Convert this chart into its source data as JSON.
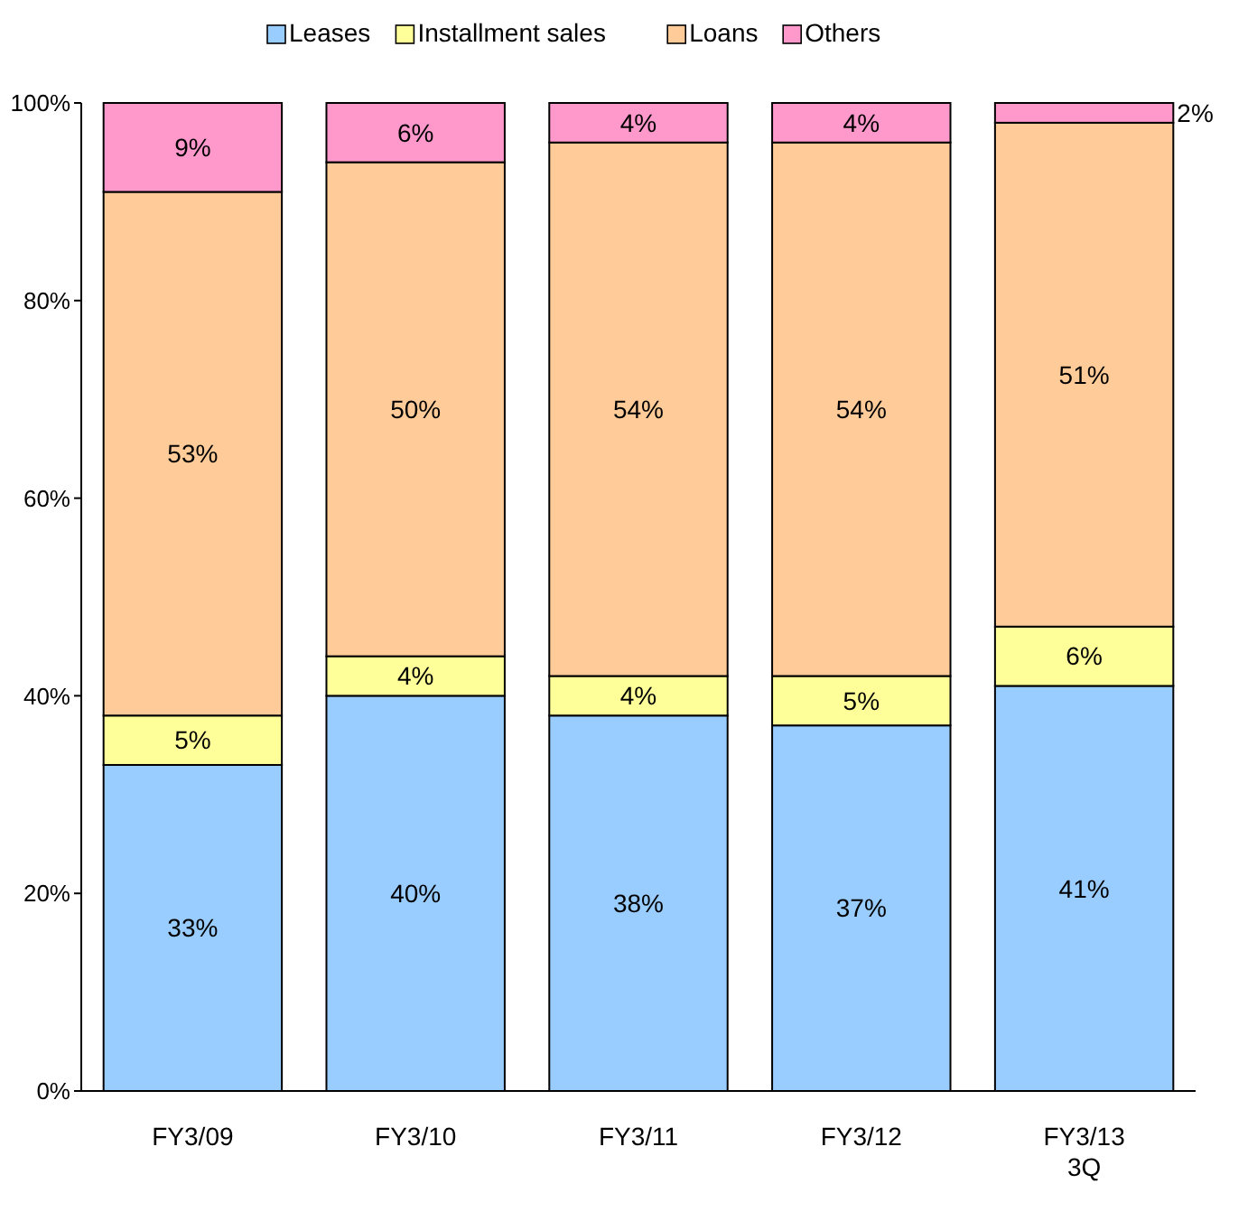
{
  "chart_data": {
    "type": "bar",
    "stacked": true,
    "categories": [
      "FY3/09",
      "FY3/10",
      "FY3/11",
      "FY3/12",
      "FY3/13\n3Q"
    ],
    "series": [
      {
        "name": "Leases",
        "color": "#99ccff",
        "values": [
          33,
          40,
          38,
          37,
          41
        ],
        "value_labels": [
          "33%",
          "40%",
          "38%",
          "37%",
          "41%"
        ]
      },
      {
        "name": "Installment sales",
        "color": "#ffff99",
        "values": [
          5,
          4,
          4,
          5,
          6
        ],
        "value_labels": [
          "5%",
          "4%",
          "4%",
          "5%",
          "6%"
        ]
      },
      {
        "name": "Loans",
        "color": "#ffcc99",
        "values": [
          53,
          50,
          54,
          54,
          51
        ],
        "value_labels": [
          "53%",
          "50%",
          "54%",
          "54%",
          "51%"
        ]
      },
      {
        "name": "Others",
        "color": "#ff99cc",
        "values": [
          9,
          6,
          4,
          4,
          2
        ],
        "value_labels": [
          "9%",
          "6%",
          "4%",
          "4%",
          "2%"
        ]
      }
    ],
    "ylim": [
      0,
      100
    ],
    "yticks": [
      {
        "value": 0,
        "label": "0%"
      },
      {
        "value": 20,
        "label": "20%"
      },
      {
        "value": 40,
        "label": "40%"
      },
      {
        "value": 60,
        "label": "60%"
      },
      {
        "value": 80,
        "label": "80%"
      },
      {
        "value": 100,
        "label": "100%"
      }
    ],
    "grid": false,
    "legend": "top"
  }
}
